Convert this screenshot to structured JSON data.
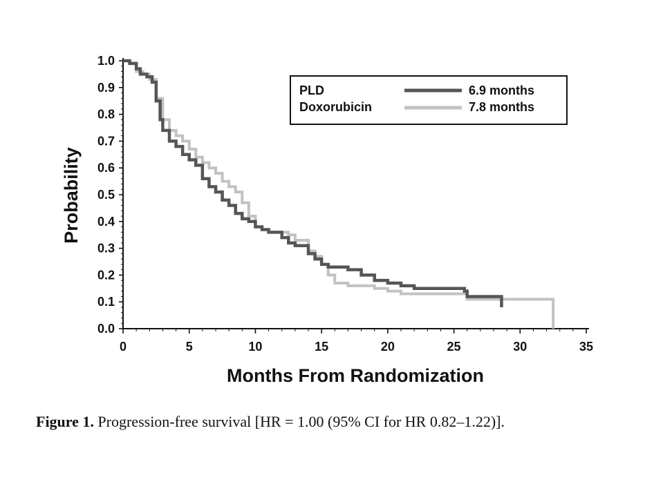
{
  "chart_data": {
    "type": "line",
    "xlabel": "Months From Randomization",
    "ylabel": "Probability",
    "xlim": [
      0,
      35
    ],
    "ylim": [
      0,
      1.0
    ],
    "x_ticks": [
      "0",
      "5",
      "10",
      "15",
      "20",
      "25",
      "30",
      "35"
    ],
    "y_ticks": [
      "0.0",
      "0.1",
      "0.2",
      "0.3",
      "0.4",
      "0.5",
      "0.6",
      "0.7",
      "0.8",
      "0.9",
      "1.0"
    ],
    "legend": {
      "position": "top-right"
    },
    "series": [
      {
        "name": "PLD",
        "annotation": "6.9 months",
        "color": "#555555",
        "step_points": [
          [
            0,
            1.0
          ],
          [
            0.5,
            0.99
          ],
          [
            1.0,
            0.97
          ],
          [
            1.3,
            0.95
          ],
          [
            1.8,
            0.94
          ],
          [
            2.2,
            0.92
          ],
          [
            2.5,
            0.85
          ],
          [
            2.8,
            0.78
          ],
          [
            3.0,
            0.74
          ],
          [
            3.5,
            0.7
          ],
          [
            4.0,
            0.68
          ],
          [
            4.5,
            0.65
          ],
          [
            5.0,
            0.63
          ],
          [
            5.5,
            0.61
          ],
          [
            6.0,
            0.56
          ],
          [
            6.5,
            0.53
          ],
          [
            7.0,
            0.51
          ],
          [
            7.5,
            0.48
          ],
          [
            8.0,
            0.46
          ],
          [
            8.5,
            0.43
          ],
          [
            9.0,
            0.41
          ],
          [
            9.5,
            0.4
          ],
          [
            10.0,
            0.38
          ],
          [
            10.5,
            0.37
          ],
          [
            11.0,
            0.36
          ],
          [
            12.0,
            0.34
          ],
          [
            12.5,
            0.32
          ],
          [
            13.0,
            0.31
          ],
          [
            14.0,
            0.28
          ],
          [
            14.5,
            0.26
          ],
          [
            15.0,
            0.24
          ],
          [
            15.5,
            0.23
          ],
          [
            17.0,
            0.22
          ],
          [
            18.0,
            0.2
          ],
          [
            19.0,
            0.18
          ],
          [
            20.0,
            0.17
          ],
          [
            21.0,
            0.16
          ],
          [
            22.0,
            0.15
          ],
          [
            25.8,
            0.14
          ],
          [
            26.0,
            0.12
          ],
          [
            28.6,
            0.08
          ]
        ]
      },
      {
        "name": "Doxorubicin",
        "annotation": "7.8 months",
        "color": "#c2c2c2",
        "step_points": [
          [
            0,
            1.0
          ],
          [
            0.5,
            0.99
          ],
          [
            1.0,
            0.96
          ],
          [
            1.5,
            0.95
          ],
          [
            2.0,
            0.93
          ],
          [
            2.5,
            0.86
          ],
          [
            3.0,
            0.78
          ],
          [
            3.5,
            0.74
          ],
          [
            4.0,
            0.72
          ],
          [
            4.5,
            0.7
          ],
          [
            5.0,
            0.67
          ],
          [
            5.5,
            0.64
          ],
          [
            6.0,
            0.62
          ],
          [
            6.5,
            0.6
          ],
          [
            7.0,
            0.58
          ],
          [
            7.5,
            0.55
          ],
          [
            8.0,
            0.53
          ],
          [
            8.5,
            0.51
          ],
          [
            9.0,
            0.47
          ],
          [
            9.5,
            0.42
          ],
          [
            10.0,
            0.38
          ],
          [
            10.5,
            0.37
          ],
          [
            11.0,
            0.36
          ],
          [
            12.0,
            0.36
          ],
          [
            12.5,
            0.35
          ],
          [
            13.0,
            0.33
          ],
          [
            14.0,
            0.29
          ],
          [
            14.5,
            0.27
          ],
          [
            15.0,
            0.24
          ],
          [
            15.5,
            0.2
          ],
          [
            16.0,
            0.17
          ],
          [
            17.0,
            0.16
          ],
          [
            19.0,
            0.15
          ],
          [
            20.0,
            0.14
          ],
          [
            21.0,
            0.13
          ],
          [
            26.0,
            0.11
          ],
          [
            32.5,
            0.0
          ]
        ]
      }
    ]
  },
  "caption": {
    "label": "Figure 1.",
    "text": " Progression-free survival [HR = 1.00 (95% CI for HR 0.82–1.22)]."
  }
}
